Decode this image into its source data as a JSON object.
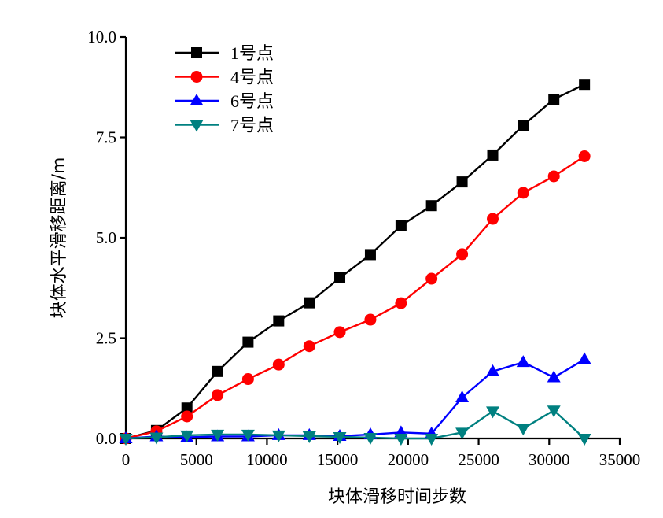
{
  "chart_data": {
    "type": "line",
    "title": "",
    "xlabel": "块体滑移时间步数",
    "ylabel": "块体水平滑移距离/m",
    "xlim": [
      0,
      35000
    ],
    "ylim": [
      0,
      10
    ],
    "xticks": [
      0,
      5000,
      10000,
      15000,
      20000,
      25000,
      30000,
      35000
    ],
    "xtick_labels": [
      "0",
      "5000",
      "10000",
      "15000",
      "20000",
      "25000",
      "30000",
      "35000"
    ],
    "yticks": [
      0,
      2.5,
      5,
      7.5,
      10
    ],
    "ytick_labels": [
      "0.0",
      "2.5",
      "5.0",
      "7.5",
      "10.0"
    ],
    "grid": false,
    "legend_position": "top-left",
    "x": [
      0,
      2170,
      4330,
      6500,
      8660,
      10830,
      13000,
      15160,
      17330,
      19500,
      21660,
      23830,
      26000,
      28160,
      30330,
      32500
    ],
    "series": [
      {
        "name": "1号点",
        "color": "#000000",
        "marker": "square",
        "values": [
          0.0,
          0.2,
          0.76,
          1.67,
          2.4,
          2.93,
          3.38,
          4.0,
          4.58,
          5.3,
          5.8,
          6.39,
          7.06,
          7.8,
          8.45,
          8.82
        ]
      },
      {
        "name": "4号点",
        "color": "#ff0000",
        "marker": "circle",
        "values": [
          0.0,
          0.18,
          0.55,
          1.08,
          1.48,
          1.84,
          2.3,
          2.65,
          2.96,
          3.37,
          3.98,
          4.59,
          5.47,
          6.12,
          6.53,
          7.03
        ]
      },
      {
        "name": "6号点",
        "color": "#0000ff",
        "marker": "triangle-up",
        "values": [
          0.0,
          0.05,
          0.03,
          0.05,
          0.05,
          0.08,
          0.08,
          0.06,
          0.1,
          0.15,
          0.12,
          1.02,
          1.67,
          1.9,
          1.52,
          1.97
        ]
      },
      {
        "name": "7号点",
        "color": "#008080",
        "marker": "triangle-down",
        "values": [
          0.0,
          0.03,
          0.08,
          0.1,
          0.1,
          0.08,
          0.06,
          0.04,
          0.02,
          0.0,
          0.0,
          0.15,
          0.68,
          0.25,
          0.7,
          0.0
        ]
      }
    ]
  }
}
